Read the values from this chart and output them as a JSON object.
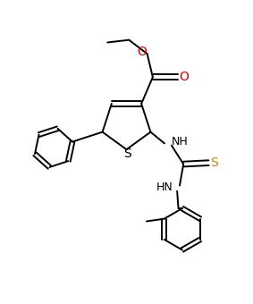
{
  "bg_color": "#ffffff",
  "line_color": "#000000",
  "oxygen_color": "#cc0000",
  "thiocarbonyl_s_color": "#b8860b",
  "line_width": 1.4,
  "figsize": [
    2.83,
    3.4
  ],
  "dpi": 100,
  "xlim": [
    0,
    10
  ],
  "ylim": [
    0,
    12
  ]
}
